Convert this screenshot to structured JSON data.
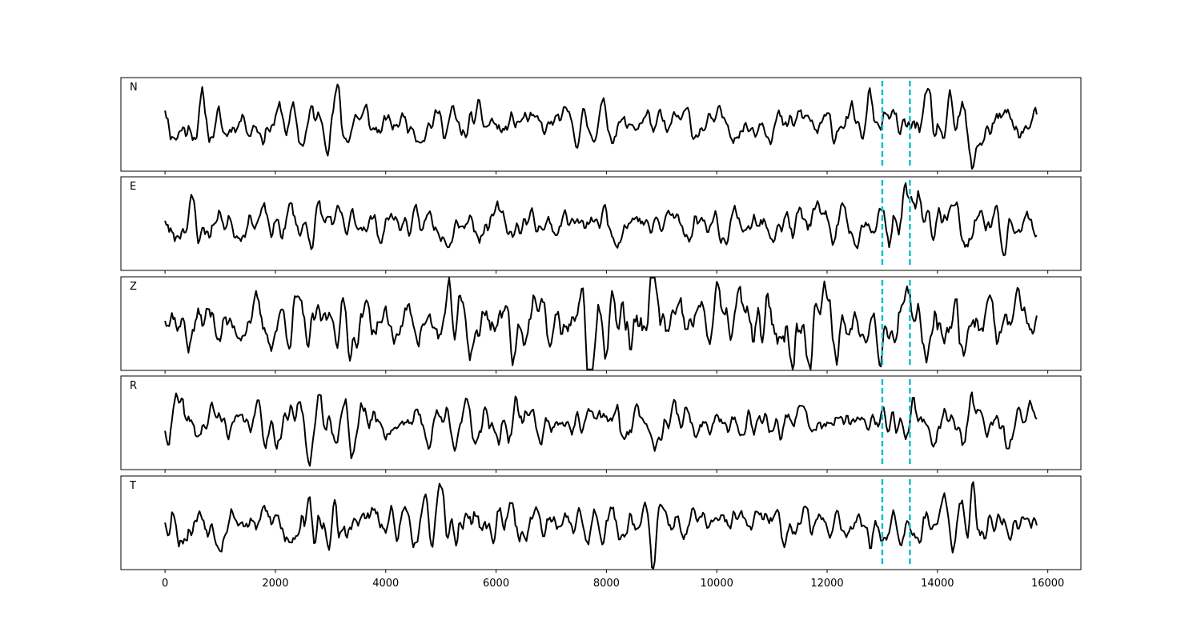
{
  "chart_data": {
    "type": "line",
    "title": "",
    "xlabel": "",
    "ylabel": "",
    "xlim": [
      -800,
      16600
    ],
    "ylim": [
      -1.25,
      1.25
    ],
    "x_ticks": [
      0,
      2000,
      4000,
      6000,
      8000,
      10000,
      12000,
      14000,
      16000
    ],
    "x_tick_labels": [
      "0",
      "2000",
      "4000",
      "6000",
      "8000",
      "10000",
      "12000",
      "14000",
      "16000"
    ],
    "x_range": [
      0,
      15800
    ],
    "sample_step": 25,
    "grid": false,
    "line_color": "#000000",
    "marker_color": "#17becf",
    "markers": [
      {
        "x": 13000,
        "style": "dashed"
      },
      {
        "x": 13500,
        "style": "dashed"
      }
    ],
    "panels": [
      {
        "label": "N",
        "seed": 11,
        "amplitude": 0.45,
        "peaks": [
          {
            "x": 3130,
            "a": 0.85
          },
          {
            "x": 14650,
            "a": -1.25
          },
          {
            "x": 14580,
            "a": -0.9
          },
          {
            "x": 12780,
            "a": 0.85
          }
        ]
      },
      {
        "label": "E",
        "seed": 23,
        "amplitude": 0.45,
        "peaks": [
          {
            "x": 13200,
            "a": 1.05
          },
          {
            "x": 13160,
            "a": -0.95
          },
          {
            "x": 13400,
            "a": 0.9
          },
          {
            "x": 13650,
            "a": 0.95
          },
          {
            "x": 14650,
            "a": -0.95
          },
          {
            "x": 15250,
            "a": -0.75
          }
        ]
      },
      {
        "label": "Z",
        "seed": 37,
        "amplitude": 0.68,
        "peaks": [
          {
            "x": 7700,
            "a": -1.05
          },
          {
            "x": 8800,
            "a": 0.9
          },
          {
            "x": 10000,
            "a": 0.9
          },
          {
            "x": 11200,
            "a": -0.85
          }
        ]
      },
      {
        "label": "R",
        "seed": 41,
        "amplitude": 0.45,
        "peaks": [
          {
            "x": 13200,
            "a": 1.05
          },
          {
            "x": 13230,
            "a": -0.95
          },
          {
            "x": 14600,
            "a": 1.05
          },
          {
            "x": 14450,
            "a": -1.0
          },
          {
            "x": 15250,
            "a": -0.85
          }
        ]
      },
      {
        "label": "T",
        "seed": 53,
        "amplitude": 0.48,
        "peaks": [
          {
            "x": 3130,
            "a": -1.05
          },
          {
            "x": 8850,
            "a": -1.0
          },
          {
            "x": 14650,
            "a": 1.05
          },
          {
            "x": 12800,
            "a": -0.85
          }
        ]
      }
    ]
  }
}
